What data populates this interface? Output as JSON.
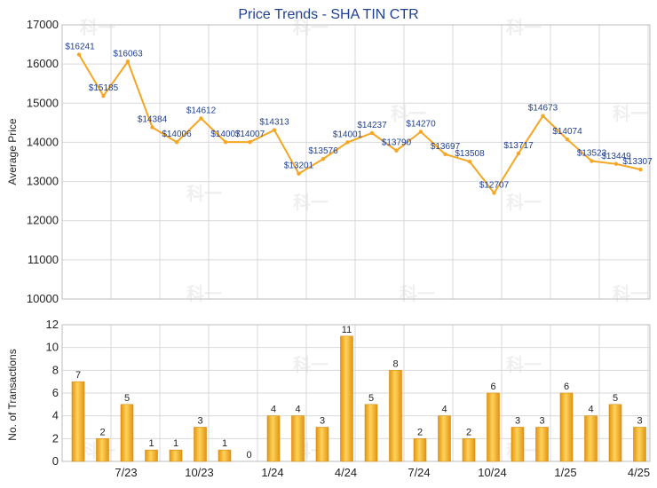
{
  "chart_data": [
    {
      "type": "line",
      "title": "Price Trends - SHA TIN CTR",
      "ylabel": "Average Price",
      "ylim": [
        10000,
        17000
      ],
      "yticks": [
        10000,
        11000,
        12000,
        13000,
        14000,
        15000,
        16000,
        17000
      ],
      "line_color": "#f5a623",
      "values": [
        16241,
        15185,
        16063,
        14384,
        14006,
        14612,
        14007,
        14007,
        14313,
        13201,
        13576,
        14001,
        14237,
        13790,
        14270,
        13697,
        13508,
        12707,
        13717,
        14673,
        14074,
        13523,
        13449,
        13307
      ],
      "point_labels": [
        "$16241",
        "$15185",
        "$16063",
        "$14384",
        "$14006",
        "$14612",
        "$14007",
        "$14007",
        "$14313",
        "$13201",
        "$13576",
        "$14001",
        "$14237",
        "$13790",
        "$14270",
        "$13697",
        "$13508",
        "$12707",
        "$13717",
        "$14673",
        "$14074",
        "$13523",
        "$13449",
        "$13307"
      ]
    },
    {
      "type": "bar",
      "ylabel": "No. of Transactions",
      "ylim": [
        0,
        12
      ],
      "yticks": [
        0,
        2,
        4,
        6,
        8,
        10,
        12
      ],
      "bar_color": "#f5a623",
      "values": [
        7,
        2,
        5,
        1,
        1,
        3,
        1,
        0,
        4,
        4,
        3,
        11,
        5,
        8,
        2,
        4,
        2,
        6,
        3,
        3,
        6,
        4,
        5,
        3
      ],
      "xtick_labels": [
        "7/23",
        "10/23",
        "1/24",
        "4/24",
        "7/24",
        "10/24",
        "1/25",
        "4/25"
      ]
    }
  ],
  "watermark": "科一"
}
